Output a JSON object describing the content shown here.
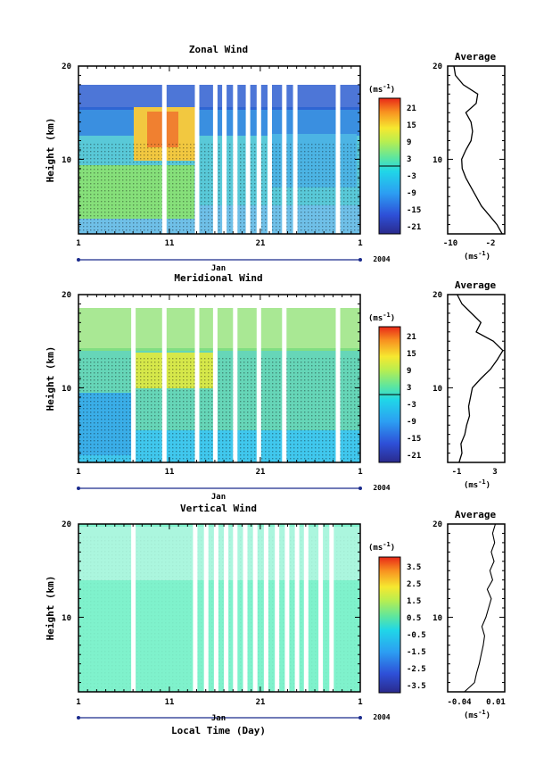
{
  "figure": {
    "xlabel": "Local Time (Day)",
    "month": "Jan",
    "year": "2004",
    "avg_title": "Average",
    "unit": "(ms",
    "unit_sup": "-1",
    "unit_close": ")"
  },
  "chart_data": [
    {
      "type": "heatmap",
      "title": "Zonal Wind",
      "ylabel": "Height (km)",
      "x_ticks": [
        "1",
        "11",
        "21",
        "1"
      ],
      "y_ticks": [
        "10",
        "20"
      ],
      "ylim": [
        2,
        20
      ],
      "colorbar_ticks": [
        "21",
        "15",
        "9",
        "3",
        "-3",
        "-9",
        "-15",
        "-21"
      ],
      "colorbar_range": [
        -24,
        24
      ],
      "gap_days": [
        10.2,
        13.8,
        15.8,
        16.8,
        18.0,
        19.4,
        20.6,
        21.8,
        23.4,
        24.6,
        29.3
      ],
      "average": {
        "type": "line",
        "title": "Average",
        "xlabel": "(ms-1)",
        "x_ticks": [
          "-10",
          "-2"
        ],
        "xlim": [
          -11,
          0
        ],
        "heights": [
          2,
          3,
          4,
          5,
          6,
          7,
          8,
          9,
          10,
          11,
          12,
          13,
          14,
          15,
          16,
          17,
          18,
          19,
          20
        ],
        "values": [
          -0.5,
          -1.5,
          -3,
          -4.5,
          -5.5,
          -6.5,
          -7.5,
          -8.2,
          -8.3,
          -7.5,
          -6.5,
          -6.2,
          -6.5,
          -7.5,
          -5.5,
          -5.2,
          -8,
          -9.5,
          -9.8
        ]
      }
    },
    {
      "type": "heatmap",
      "title": "Meridional Wind",
      "ylabel": "Height (km)",
      "x_ticks": [
        "1",
        "11",
        "21",
        "1"
      ],
      "y_ticks": [
        "10",
        "20"
      ],
      "ylim": [
        2,
        20
      ],
      "colorbar_ticks": [
        "21",
        "15",
        "9",
        "3",
        "-3",
        "-9",
        "-15",
        "-21"
      ],
      "colorbar_range": [
        -24,
        24
      ],
      "gap_days": [
        6.8,
        10.2,
        13.8,
        15.8,
        18.0,
        20.6,
        23.4,
        29.3
      ],
      "average": {
        "type": "line",
        "title": "Average",
        "xlabel": "(ms-1)",
        "x_ticks": [
          "-1",
          "3"
        ],
        "xlim": [
          -2,
          4
        ],
        "heights": [
          2,
          3,
          4,
          5,
          6,
          7,
          8,
          9,
          10,
          11,
          12,
          13,
          14,
          15,
          16,
          17,
          18,
          19,
          20
        ],
        "values": [
          -0.8,
          -0.5,
          -0.6,
          -0.2,
          0.0,
          0.3,
          0.2,
          0.4,
          0.6,
          1.5,
          2.5,
          3.2,
          3.8,
          2.8,
          1.0,
          1.5,
          0.5,
          -0.5,
          -1.0
        ]
      }
    },
    {
      "type": "heatmap",
      "title": "Vertical Wind",
      "ylabel": "Height (km)",
      "x_ticks": [
        "1",
        "11",
        "21",
        "1"
      ],
      "y_ticks": [
        "10",
        "20"
      ],
      "ylim": [
        2,
        20
      ],
      "colorbar_ticks": [
        "3.5",
        "2.5",
        "1.5",
        "0.5",
        "-0.5",
        "-1.5",
        "-2.5",
        "-3.5"
      ],
      "colorbar_range": [
        -4,
        4
      ],
      "gap_days": [
        6.8,
        13.6,
        14.8,
        15.9,
        17.0,
        18.0,
        19.1,
        20.2,
        21.4,
        22.6,
        23.7,
        24.8,
        25.8,
        27.4,
        28.6
      ],
      "average": {
        "type": "line",
        "title": "Average",
        "xlabel": "(ms-1)",
        "x_ticks": [
          "-0.04",
          "0.01"
        ],
        "xlim": [
          -0.055,
          0.03
        ],
        "heights": [
          2,
          3,
          4,
          5,
          6,
          7,
          8,
          9,
          10,
          11,
          12,
          13,
          14,
          15,
          16,
          17,
          18,
          19,
          20
        ],
        "values": [
          -0.03,
          -0.015,
          -0.012,
          -0.008,
          -0.005,
          -0.002,
          0.0,
          -0.004,
          0.002,
          0.006,
          0.01,
          0.004,
          0.012,
          0.008,
          0.014,
          0.01,
          0.015,
          0.012,
          0.016
        ]
      }
    }
  ]
}
